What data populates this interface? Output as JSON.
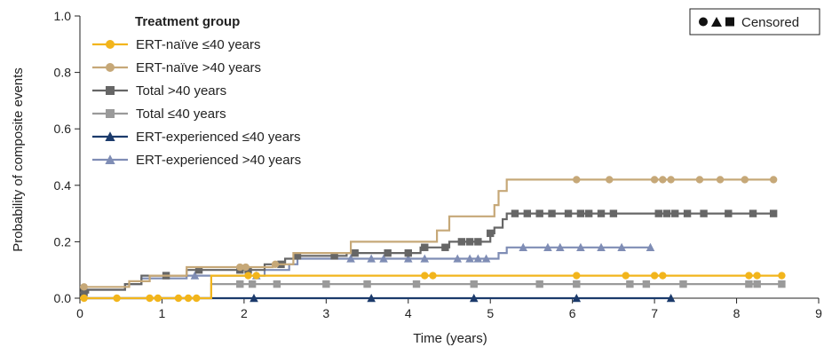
{
  "chart_data": {
    "type": "line",
    "xlabel": "Time (years)",
    "ylabel": "Probability of composite events",
    "xlim": [
      0,
      9
    ],
    "ylim": [
      0,
      1.0
    ],
    "x_ticks": [
      "0",
      "1",
      "2",
      "3",
      "4",
      "5",
      "6",
      "7",
      "8",
      "9"
    ],
    "y_ticks": [
      "0.0",
      "0.2",
      "0.4",
      "0.6",
      "0.8",
      "1.0"
    ],
    "legend_title": "Treatment group",
    "legend_position": "top-left",
    "censor_legend": {
      "label": "Censored",
      "position": "top-right"
    },
    "series": [
      {
        "name": "ERT-naïve ≤40 years",
        "color": "#f2b51c",
        "marker": "circle",
        "steps": [
          [
            0,
            0.0
          ],
          [
            1.6,
            0.0
          ],
          [
            1.6,
            0.08
          ],
          [
            8.55,
            0.08
          ]
        ],
        "censored": [
          0.05,
          0.45,
          0.85,
          0.95,
          1.2,
          1.32,
          1.42,
          2.05,
          2.15,
          4.2,
          4.3,
          6.05,
          6.65,
          7.0,
          7.1,
          8.15,
          8.25,
          8.55
        ]
      },
      {
        "name": "ERT-naïve >40 years",
        "color": "#c6a878",
        "marker": "circle",
        "steps": [
          [
            0,
            0.04
          ],
          [
            0.1,
            0.04
          ],
          [
            0.6,
            0.04
          ],
          [
            0.6,
            0.06
          ],
          [
            0.85,
            0.06
          ],
          [
            0.85,
            0.08
          ],
          [
            1.3,
            0.08
          ],
          [
            1.3,
            0.11
          ],
          [
            2.0,
            0.11
          ],
          [
            2.0,
            0.11
          ],
          [
            2.35,
            0.11
          ],
          [
            2.35,
            0.12
          ],
          [
            2.6,
            0.12
          ],
          [
            2.6,
            0.16
          ],
          [
            3.3,
            0.16
          ],
          [
            3.3,
            0.2
          ],
          [
            4.35,
            0.2
          ],
          [
            4.35,
            0.24
          ],
          [
            4.5,
            0.24
          ],
          [
            4.5,
            0.29
          ],
          [
            5.05,
            0.29
          ],
          [
            5.05,
            0.33
          ],
          [
            5.1,
            0.33
          ],
          [
            5.1,
            0.38
          ],
          [
            5.2,
            0.38
          ],
          [
            5.2,
            0.42
          ],
          [
            8.45,
            0.42
          ]
        ],
        "censored": [
          0.05,
          1.95,
          2.02,
          2.38,
          6.05,
          6.45,
          7.0,
          7.1,
          7.2,
          7.55,
          7.8,
          8.1,
          8.45
        ]
      },
      {
        "name": "Total >40 years",
        "color": "#666666",
        "marker": "square",
        "steps": [
          [
            0,
            0.02
          ],
          [
            0.1,
            0.02
          ],
          [
            0.1,
            0.03
          ],
          [
            0.55,
            0.03
          ],
          [
            0.55,
            0.05
          ],
          [
            0.75,
            0.05
          ],
          [
            0.75,
            0.08
          ],
          [
            1.3,
            0.08
          ],
          [
            1.3,
            0.1
          ],
          [
            2.25,
            0.1
          ],
          [
            2.25,
            0.12
          ],
          [
            2.5,
            0.12
          ],
          [
            2.5,
            0.14
          ],
          [
            2.65,
            0.14
          ],
          [
            2.65,
            0.15
          ],
          [
            3.25,
            0.15
          ],
          [
            3.25,
            0.16
          ],
          [
            4.15,
            0.16
          ],
          [
            4.15,
            0.18
          ],
          [
            4.5,
            0.18
          ],
          [
            4.5,
            0.2
          ],
          [
            5.0,
            0.2
          ],
          [
            5.0,
            0.23
          ],
          [
            5.05,
            0.23
          ],
          [
            5.05,
            0.25
          ],
          [
            5.15,
            0.25
          ],
          [
            5.15,
            0.28
          ],
          [
            5.2,
            0.28
          ],
          [
            5.2,
            0.3
          ],
          [
            8.45,
            0.3
          ]
        ],
        "censored": [
          0.05,
          1.05,
          1.45,
          1.95,
          2.05,
          2.45,
          2.65,
          3.1,
          3.35,
          3.75,
          4.0,
          4.2,
          4.45,
          4.65,
          4.75,
          4.85,
          5.0,
          5.3,
          5.45,
          5.6,
          5.75,
          5.95,
          6.1,
          6.2,
          6.35,
          6.5,
          7.05,
          7.15,
          7.25,
          7.4,
          7.6,
          7.9,
          8.2,
          8.45
        ]
      },
      {
        "name": "Total ≤40 years",
        "color": "#9a9a9a",
        "marker": "square",
        "steps": [
          [
            0,
            0.0
          ],
          [
            1.6,
            0.0
          ],
          [
            1.6,
            0.05
          ],
          [
            8.55,
            0.05
          ]
        ],
        "censored": [
          1.95,
          2.1,
          2.4,
          3.0,
          3.5,
          4.1,
          4.8,
          5.6,
          6.05,
          6.7,
          6.9,
          7.35,
          8.15,
          8.25,
          8.55
        ]
      },
      {
        "name": "ERT-experienced ≤40 years",
        "color": "#1b3a6b",
        "marker": "triangle",
        "steps": [
          [
            0,
            0.0
          ],
          [
            7.2,
            0.0
          ]
        ],
        "censored": [
          2.12,
          3.55,
          4.8,
          6.05,
          7.2
        ]
      },
      {
        "name": "ERT-experienced >40 years",
        "color": "#7f8db5",
        "marker": "triangle",
        "steps": [
          [
            0,
            0.02
          ],
          [
            0.1,
            0.02
          ],
          [
            0.1,
            0.03
          ],
          [
            0.55,
            0.03
          ],
          [
            0.55,
            0.05
          ],
          [
            0.75,
            0.05
          ],
          [
            0.75,
            0.07
          ],
          [
            1.3,
            0.07
          ],
          [
            1.3,
            0.08
          ],
          [
            2.25,
            0.08
          ],
          [
            2.25,
            0.1
          ],
          [
            2.55,
            0.1
          ],
          [
            2.55,
            0.12
          ],
          [
            2.65,
            0.12
          ],
          [
            2.65,
            0.14
          ],
          [
            5.1,
            0.14
          ],
          [
            5.1,
            0.16
          ],
          [
            5.2,
            0.16
          ],
          [
            5.2,
            0.18
          ],
          [
            6.95,
            0.18
          ]
        ],
        "censored": [
          1.4,
          2.15,
          3.3,
          3.55,
          3.7,
          4.0,
          4.2,
          4.6,
          4.75,
          4.85,
          4.95,
          5.4,
          5.7,
          5.85,
          6.1,
          6.35,
          6.6,
          6.95
        ]
      }
    ]
  }
}
